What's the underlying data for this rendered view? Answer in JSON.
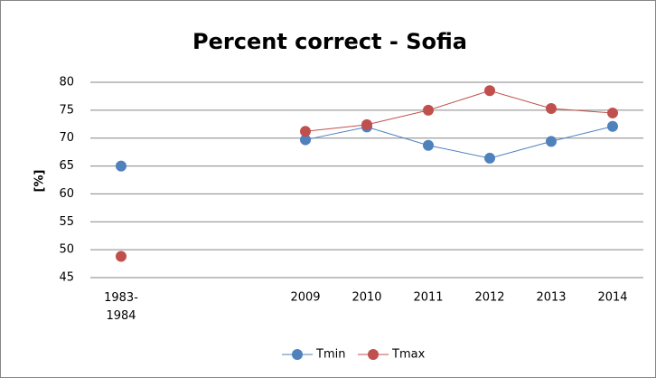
{
  "chart_data": {
    "type": "line",
    "title": "Percent correct - Sofia",
    "y_label": "[%]",
    "categories": [
      "1983-1984",
      null,
      null,
      "2009",
      "2010",
      "2011",
      "2012",
      "2013",
      "2014"
    ],
    "series": [
      {
        "name": "Tmin",
        "color": "#4f81bd",
        "values": [
          65,
          null,
          null,
          69.7,
          72,
          68.7,
          66.4,
          69.4,
          72.1
        ]
      },
      {
        "name": "Tmax",
        "color": "#c0504d",
        "values": [
          48.8,
          null,
          null,
          71.2,
          72.4,
          75,
          78.5,
          75.3,
          74.5
        ]
      }
    ],
    "ylim": [
      45,
      80
    ],
    "yticks": [
      45,
      50,
      55,
      60,
      65,
      70,
      75,
      80
    ],
    "grid": true,
    "legend": "bottom"
  }
}
